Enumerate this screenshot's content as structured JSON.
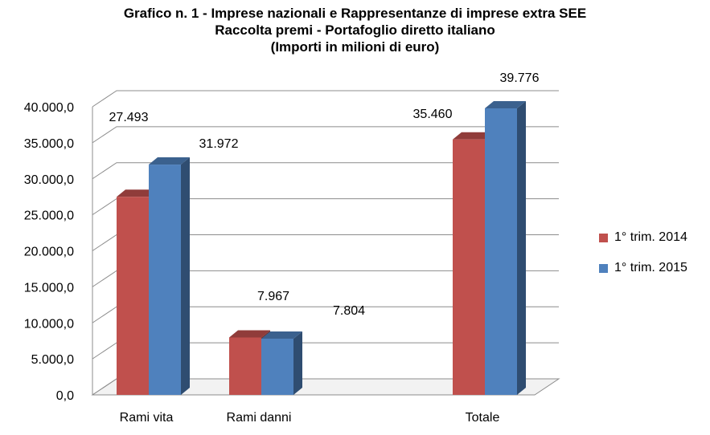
{
  "chart_data": {
    "type": "bar",
    "title": "Grafico n. 1 - Imprese nazionali e Rappresentanze di imprese extra SEE",
    "subtitle": "Raccolta premi - Portafoglio diretto italiano",
    "units": "(Importi in milioni di euro)",
    "categories": [
      "Rami vita",
      "Rami danni",
      "Totale"
    ],
    "series": [
      {
        "name": "1° trim.  2014",
        "values": [
          27493,
          7967,
          35460
        ],
        "labels": [
          "27.493",
          "7.967",
          "35.460"
        ],
        "color": "#C0504D"
      },
      {
        "name": "1° trim. 2015",
        "values": [
          31972,
          7804,
          39776
        ],
        "labels": [
          "31.972",
          "7.804",
          "39.776"
        ],
        "color": "#4F81BD"
      }
    ],
    "ylim": [
      0,
      40000
    ],
    "yticks": [
      0,
      5000,
      10000,
      15000,
      20000,
      25000,
      30000,
      35000,
      40000
    ],
    "ytick_labels": [
      "0,0",
      "5.000,0",
      "10.000,0",
      "15.000,0",
      "20.000,0",
      "25.000,0",
      "30.000,0",
      "35.000,0",
      "40.000,0"
    ],
    "grid": true,
    "legend": "right",
    "style": "3d-clustered-bar"
  }
}
